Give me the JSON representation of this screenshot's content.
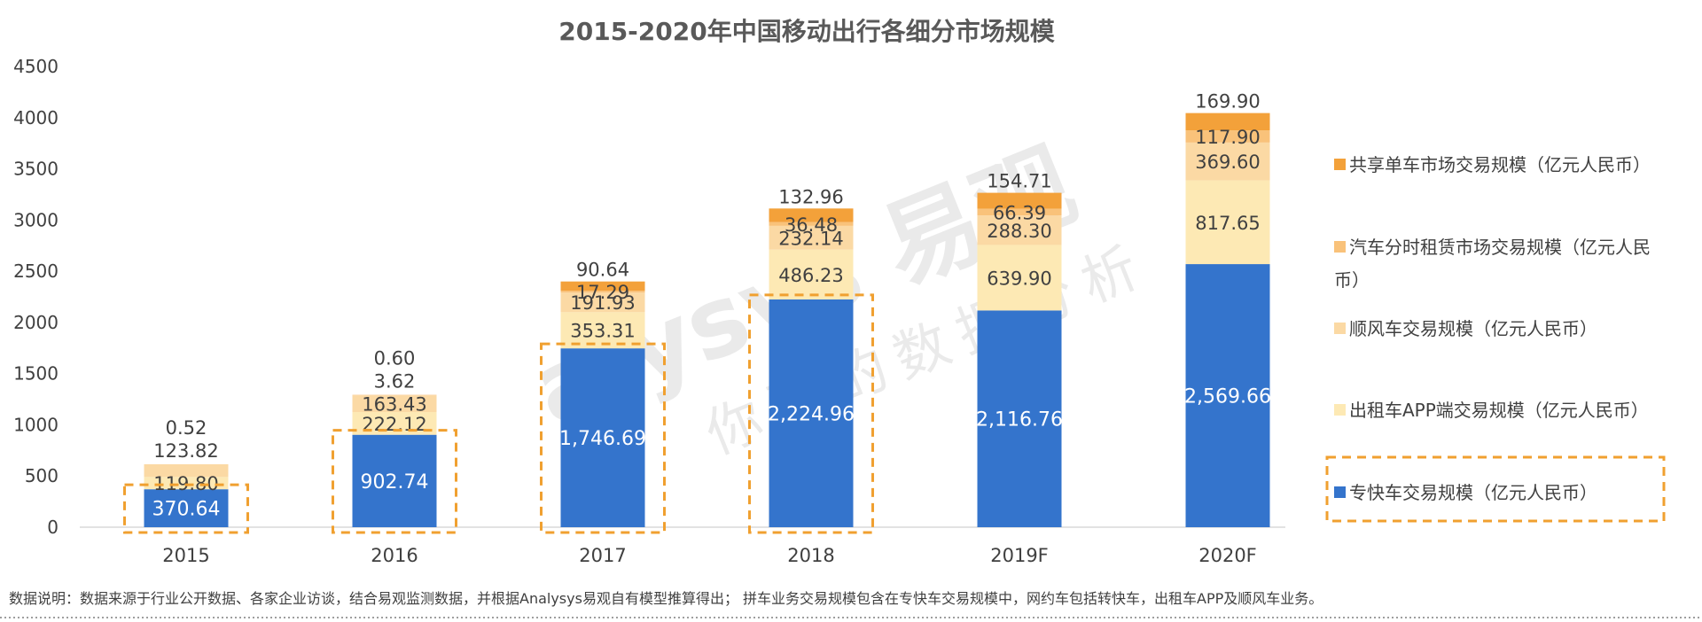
{
  "chart_data": {
    "type": "bar",
    "stacked": true,
    "title": "2015-2020年中国移动出行各细分市场规模",
    "categories": [
      "2015",
      "2016",
      "2017",
      "2018",
      "2019F",
      "2020F"
    ],
    "ylim": [
      0,
      4500
    ],
    "yticks": [
      0,
      500,
      1000,
      1500,
      2000,
      2500,
      3000,
      3500,
      4000,
      4500
    ],
    "grid": false,
    "legend_position": "right",
    "series": [
      {
        "name": "专快车交易规模（亿元人民币）",
        "color": "#3474cc",
        "label_color": "#ffffff",
        "values": [
          370.64,
          902.74,
          1746.69,
          2224.96,
          2116.76,
          2569.66
        ],
        "labels": [
          "370.64",
          "902.74",
          "1,746.69",
          "2,224.96",
          "2,116.76",
          "2,569.66"
        ]
      },
      {
        "name": "出租车APP端交易规模（亿元人民币）",
        "color": "#fde9b4",
        "values": [
          119.8,
          222.12,
          353.31,
          486.23,
          639.9,
          817.65
        ],
        "labels": [
          "119.80",
          "222.12",
          "353.31",
          "486.23",
          "639.90",
          "817.65"
        ]
      },
      {
        "name": "顺风车交易规模（亿元人民币）",
        "color": "#fbd9a4",
        "values": [
          123.82,
          163.43,
          191.93,
          232.14,
          288.3,
          369.6
        ],
        "labels": [
          "123.82",
          "163.43",
          "191.93",
          "232.14",
          "288.30",
          "369.60"
        ]
      },
      {
        "name": "汽车分时租赁市场交易规模（亿元人民币）",
        "color": "#f9c27a",
        "values": [
          0.52,
          3.62,
          17.29,
          36.48,
          66.39,
          117.9
        ],
        "labels": [
          "0.52",
          "3.62",
          "17.29",
          "36.48",
          "66.39",
          "117.90"
        ]
      },
      {
        "name": "共享单车市场交易规模（亿元人民币）",
        "color": "#f3a13a",
        "values": [
          0,
          0.6,
          90.64,
          132.96,
          154.71,
          169.9
        ],
        "labels": [
          "",
          "0.60",
          "90.64",
          "132.96",
          "154.71",
          "169.90"
        ]
      }
    ],
    "highlighted_categories": [
      "2015",
      "2016",
      "2017",
      "2018"
    ]
  },
  "legend": {
    "items": [
      {
        "label": "共享单车市场交易规模（亿元人民币）",
        "color": "#f3a13a"
      },
      {
        "label_line1": "汽车分时租赁市场交易规模（亿元人民",
        "label_line2": "币）",
        "color": "#f9c27a"
      },
      {
        "label": "顺风车交易规模（亿元人民币）",
        "color": "#fbd9a4"
      },
      {
        "label": "出租车APP端交易规模（亿元人民币）",
        "color": "#fde9b4"
      },
      {
        "label": "专快车交易规模（亿元人民币）",
        "color": "#3474cc"
      }
    ]
  },
  "watermark": {
    "brand": "alysys 易观",
    "slogan": "你要的数据分析"
  },
  "note": "数据说明：数据来源于行业公开数据、各家企业访谈，结合易观监测数据，并根据Analysys易观自有模型推算得出；  拼车业务交易规模包含在专快车交易规模中，网约车包括转快车，出租车APP及顺风车业务。",
  "colors": {
    "highlight_border": "#f0a030",
    "axis": "#d9d9d9",
    "dotted_line": "#7f7f7f"
  }
}
